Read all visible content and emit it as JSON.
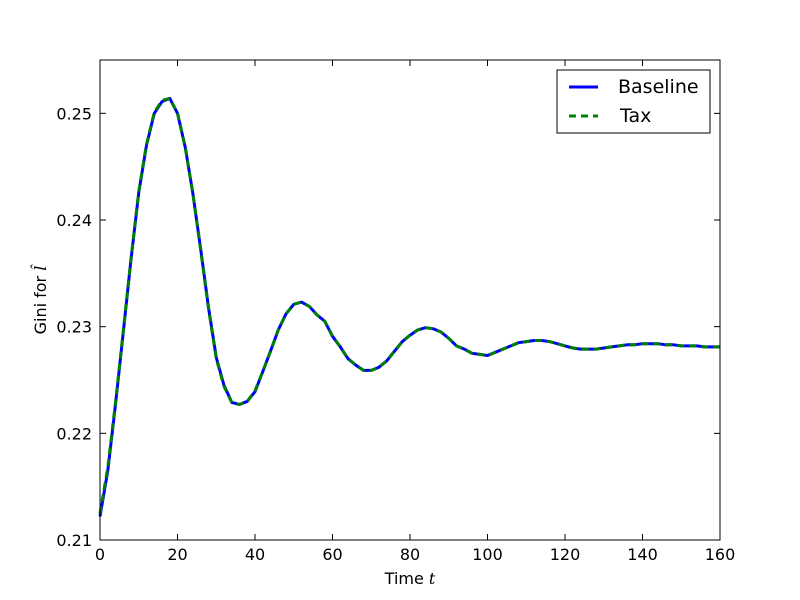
{
  "chart_data": {
    "type": "line",
    "title": "",
    "xlabel": "Time",
    "xlabel_var": "t",
    "ylabel": "Gini for",
    "ylabel_var": "l̂",
    "xlim": [
      0,
      160
    ],
    "ylim": [
      0.21,
      0.255
    ],
    "xticks": [
      0,
      20,
      40,
      60,
      80,
      100,
      120,
      140,
      160
    ],
    "yticks": [
      0.21,
      0.22,
      0.23,
      0.24,
      0.25
    ],
    "xtick_labels": [
      "0",
      "20",
      "40",
      "60",
      "80",
      "100",
      "120",
      "140",
      "160"
    ],
    "ytick_labels": [
      "0.21",
      "0.22",
      "0.23",
      "0.24",
      "0.25"
    ],
    "grid": false,
    "legend_position": "upper-right",
    "x": [
      0,
      2,
      4,
      6,
      8,
      10,
      12,
      14,
      16,
      18,
      20,
      22,
      24,
      26,
      28,
      30,
      32,
      34,
      36,
      38,
      40,
      42,
      44,
      46,
      48,
      50,
      52,
      54,
      56,
      58,
      60,
      62,
      64,
      66,
      68,
      70,
      72,
      74,
      76,
      78,
      80,
      82,
      84,
      86,
      88,
      90,
      92,
      94,
      96,
      98,
      100,
      102,
      104,
      106,
      108,
      110,
      112,
      114,
      116,
      118,
      120,
      122,
      124,
      126,
      128,
      130,
      132,
      134,
      136,
      138,
      140,
      142,
      144,
      146,
      148,
      150,
      152,
      154,
      156,
      158,
      160
    ],
    "series": [
      {
        "name": "Baseline",
        "color": "#0000ff",
        "style": "solid",
        "values": [
          0.2122,
          0.2165,
          0.2227,
          0.2295,
          0.2363,
          0.2426,
          0.247,
          0.25,
          0.2511,
          0.2514,
          0.25,
          0.2468,
          0.2424,
          0.2372,
          0.2318,
          0.2271,
          0.2245,
          0.2229,
          0.2227,
          0.223,
          0.2239,
          0.2258,
          0.2277,
          0.2297,
          0.2312,
          0.2321,
          0.2323,
          0.2319,
          0.2311,
          0.2305,
          0.2291,
          0.2281,
          0.227,
          0.2264,
          0.2259,
          0.2259,
          0.2262,
          0.2268,
          0.2277,
          0.2286,
          0.2292,
          0.2297,
          0.2299,
          0.2298,
          0.2295,
          0.2289,
          0.2282,
          0.2279,
          0.2275,
          0.2274,
          0.2273,
          0.2276,
          0.2279,
          0.2282,
          0.2285,
          0.2286,
          0.2287,
          0.2287,
          0.2286,
          0.2284,
          0.2282,
          0.228,
          0.2279,
          0.2279,
          0.2279,
          0.228,
          0.2281,
          0.2282,
          0.2283,
          0.2283,
          0.2284,
          0.2284,
          0.2284,
          0.2283,
          0.2283,
          0.2282,
          0.2282,
          0.2282,
          0.2281,
          0.2281,
          0.2281
        ]
      },
      {
        "name": "Tax",
        "color": "#008000",
        "style": "dashed",
        "values": [
          0.2125,
          0.2168,
          0.2229,
          0.2296,
          0.2364,
          0.2427,
          0.2471,
          0.2501,
          0.2512,
          0.2514,
          0.25,
          0.2468,
          0.2424,
          0.2371,
          0.2317,
          0.227,
          0.2244,
          0.2229,
          0.2227,
          0.223,
          0.224,
          0.2258,
          0.2277,
          0.2297,
          0.2312,
          0.2321,
          0.2323,
          0.2319,
          0.2311,
          0.2305,
          0.2291,
          0.2281,
          0.227,
          0.2264,
          0.2259,
          0.2259,
          0.2262,
          0.2268,
          0.2277,
          0.2286,
          0.2292,
          0.2297,
          0.2299,
          0.2298,
          0.2295,
          0.2289,
          0.2282,
          0.2279,
          0.2275,
          0.2274,
          0.2273,
          0.2276,
          0.2279,
          0.2282,
          0.2285,
          0.2286,
          0.2287,
          0.2287,
          0.2286,
          0.2284,
          0.2282,
          0.228,
          0.2279,
          0.2279,
          0.2279,
          0.228,
          0.2281,
          0.2282,
          0.2283,
          0.2283,
          0.2284,
          0.2284,
          0.2284,
          0.2283,
          0.2283,
          0.2282,
          0.2282,
          0.2282,
          0.2281,
          0.2281,
          0.2281
        ]
      }
    ]
  }
}
